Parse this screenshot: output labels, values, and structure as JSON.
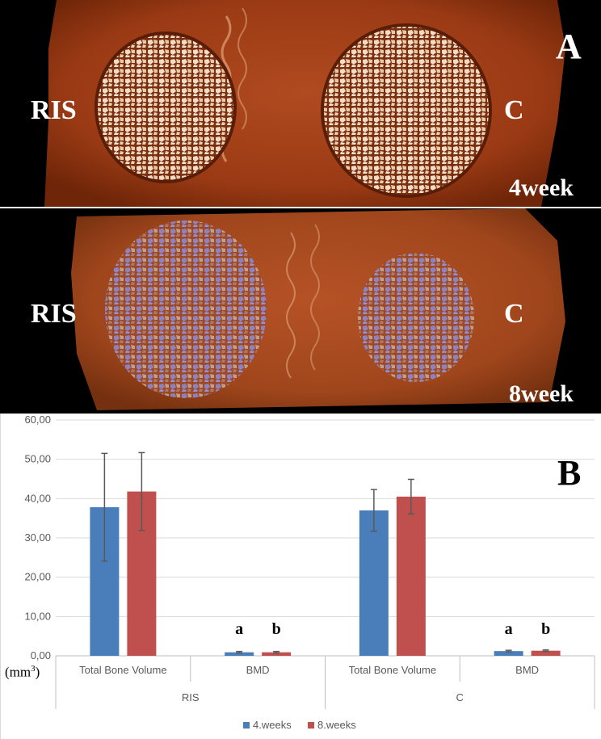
{
  "panel_a": {
    "letter": "A",
    "top_left_label": "RIS",
    "top_right_label": "C",
    "top_timepoint": "4week",
    "bottom_left_label": "RIS",
    "bottom_right_label": "C",
    "bottom_timepoint": "8week"
  },
  "panel_b": {
    "letter": "B",
    "unit_prefix": "(mm",
    "unit_sup": "3",
    "unit_suffix": ")"
  },
  "chart_data": {
    "type": "bar",
    "title": "",
    "ylim": [
      0,
      60
    ],
    "yticks": [
      "0,00",
      "10,00",
      "20,00",
      "30,00",
      "40,00",
      "50,00",
      "60,00"
    ],
    "groups": [
      "RIS",
      "C"
    ],
    "categories": [
      "Total Bone Volume",
      "BMD",
      "Total Bone Volume",
      "BMD"
    ],
    "series": [
      {
        "name": "4.weeks",
        "color": "#4a7ebb",
        "values": [
          37.8,
          0.9,
          37.0,
          1.2
        ],
        "errors": [
          13.7,
          0.2,
          5.3,
          0.2
        ]
      },
      {
        "name": "8.weeks",
        "color": "#c0504d",
        "values": [
          41.8,
          0.9,
          40.5,
          1.3
        ],
        "errors": [
          9.9,
          0.2,
          4.4,
          0.2
        ]
      }
    ],
    "significance": [
      {
        "category_index": 1,
        "series_index": 0,
        "label": "a"
      },
      {
        "category_index": 1,
        "series_index": 1,
        "label": "b"
      },
      {
        "category_index": 3,
        "series_index": 0,
        "label": "a"
      },
      {
        "category_index": 3,
        "series_index": 1,
        "label": "b"
      }
    ],
    "legend_position": "bottom-center",
    "grid": true
  }
}
